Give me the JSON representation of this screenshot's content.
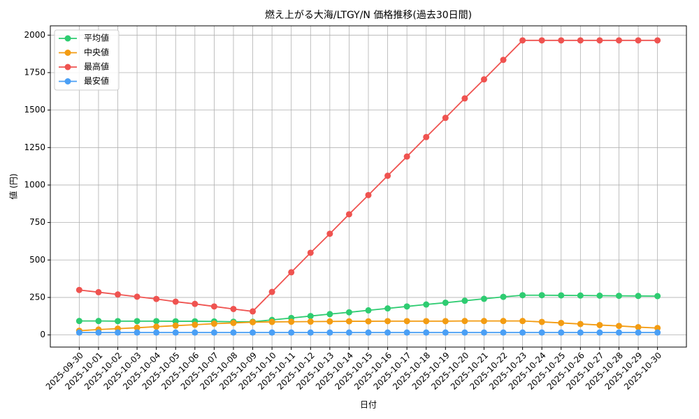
{
  "chart_data": {
    "type": "line",
    "title": "燃え上がる大海/LTGY/N 価格推移(過去30日間)",
    "x_label": "日付",
    "y_label": "値 (円)",
    "categories": [
      "2025-09-30",
      "2025-10-01",
      "2025-10-02",
      "2025-10-03",
      "2025-10-04",
      "2025-10-05",
      "2025-10-06",
      "2025-10-07",
      "2025-10-08",
      "2025-10-09",
      "2025-10-10",
      "2025-10-11",
      "2025-10-12",
      "2025-10-13",
      "2025-10-14",
      "2025-10-15",
      "2025-10-16",
      "2025-10-17",
      "2025-10-18",
      "2025-10-19",
      "2025-10-20",
      "2025-10-21",
      "2025-10-22",
      "2025-10-23",
      "2025-10-24",
      "2025-10-25",
      "2025-10-26",
      "2025-10-27",
      "2025-10-28",
      "2025-10-29",
      "2025-10-30"
    ],
    "series": [
      {
        "name": "平均値",
        "color": "#2ecc71",
        "values": [
          93,
          93,
          92,
          92,
          92,
          91,
          91,
          90,
          88,
          88,
          100,
          113,
          126,
          139,
          151,
          164,
          177,
          190,
          203,
          215,
          228,
          241,
          254,
          265,
          265,
          264,
          263,
          262,
          261,
          260,
          259
        ]
      },
      {
        "name": "中央値",
        "color": "#f39c12",
        "values": [
          28,
          36,
          42,
          48,
          55,
          62,
          68,
          75,
          80,
          85,
          87,
          88,
          89,
          90,
          91,
          91,
          92,
          92,
          92,
          92,
          93,
          93,
          93,
          93,
          87,
          80,
          73,
          66,
          60,
          52,
          46
        ]
      },
      {
        "name": "最高値",
        "color": "#ef5350",
        "values": [
          300,
          285,
          270,
          255,
          240,
          222,
          207,
          190,
          173,
          157,
          287,
          418,
          548,
          675,
          805,
          933,
          1062,
          1190,
          1320,
          1448,
          1578,
          1705,
          1835,
          1965,
          1965,
          1965,
          1965,
          1965,
          1965,
          1965,
          1965
        ]
      },
      {
        "name": "最安値",
        "color": "#4a9ff5",
        "values": [
          16,
          16,
          16,
          16,
          16,
          16,
          16,
          16,
          16,
          16,
          16,
          16,
          16,
          16,
          16,
          16,
          16,
          16,
          16,
          16,
          16,
          16,
          16,
          16,
          16,
          16,
          16,
          16,
          16,
          16,
          16
        ]
      }
    ],
    "ylim": [
      -81,
      2062
    ],
    "yticks": [
      0,
      250,
      500,
      750,
      1000,
      1250,
      1500,
      1750,
      2000
    ],
    "grid": true,
    "legend": "upper-left"
  }
}
